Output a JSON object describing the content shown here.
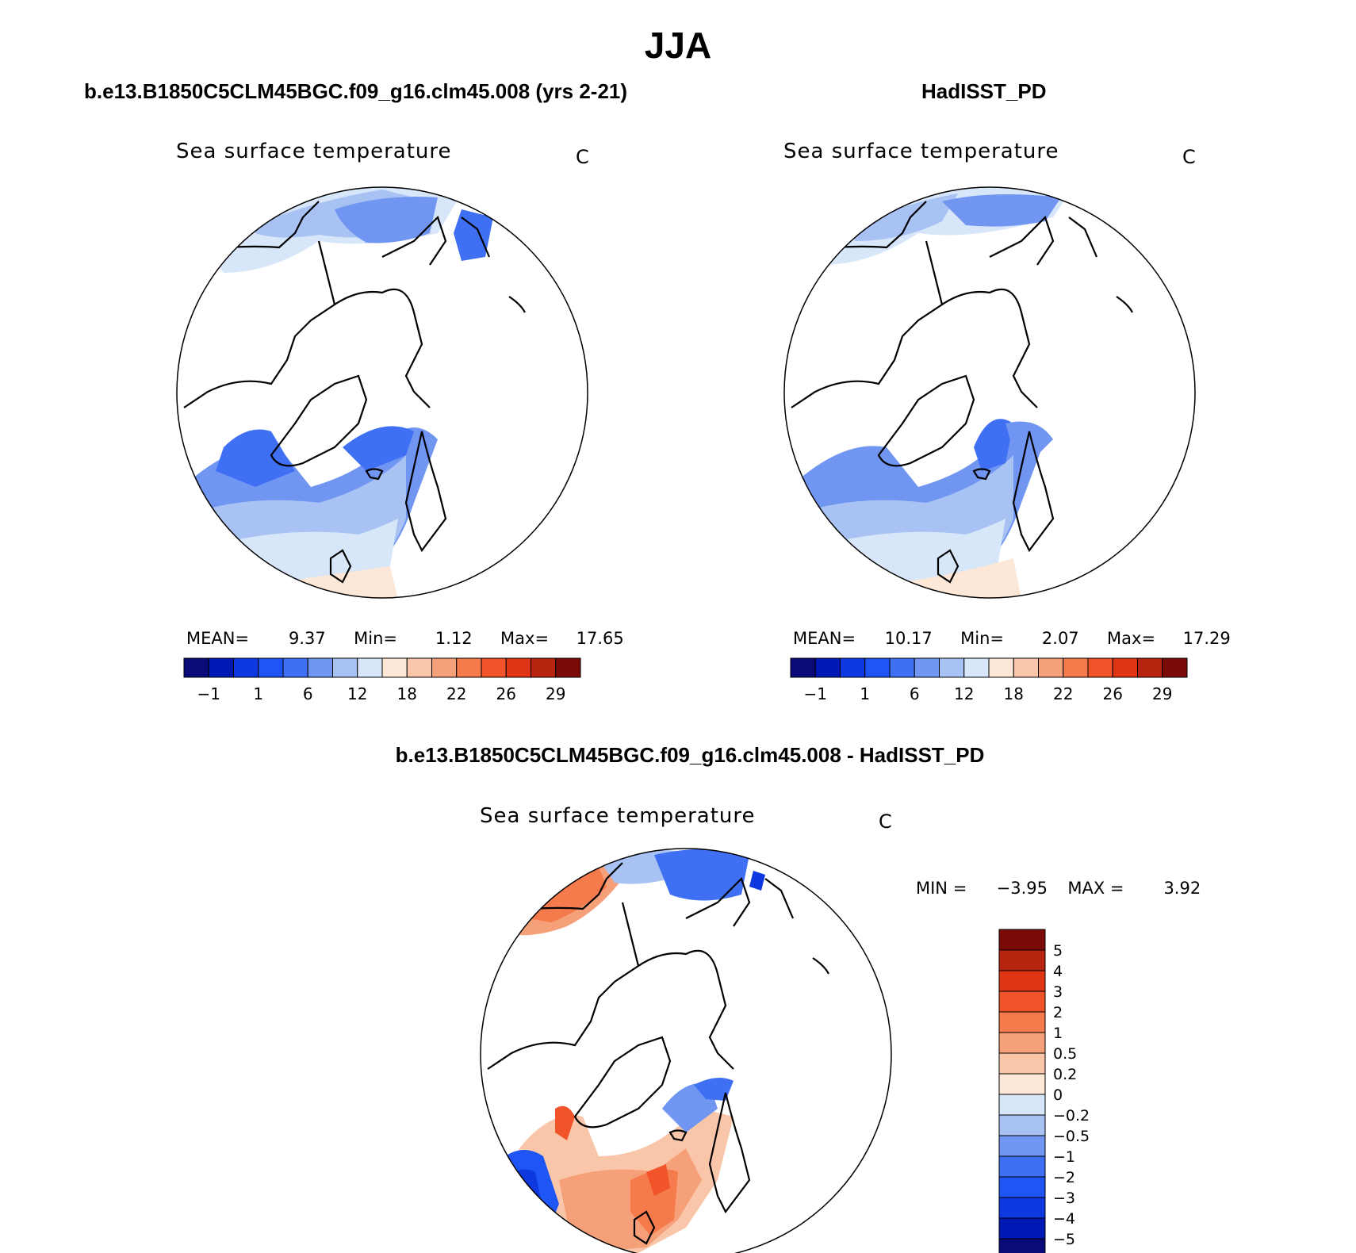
{
  "title": "JJA",
  "panels": [
    {
      "title": "b.e13.B1850C5CLM45BGC.f09_g16.clm45.008 (yrs 2-21)",
      "variable": "Sea surface temperature",
      "units": "C",
      "stats": {
        "mean_label": "MEAN=",
        "mean": "9.37",
        "min_label": "Min=",
        "min": "1.12",
        "max_label": "Max=",
        "max": "17.65"
      }
    },
    {
      "title": "HadISST_PD",
      "variable": "Sea surface temperature",
      "units": "C",
      "stats": {
        "mean_label": "MEAN=",
        "mean": "10.17",
        "min_label": "Min=",
        "min": "2.07",
        "max_label": "Max=",
        "max": "17.29"
      }
    },
    {
      "title": "b.e13.B1850C5CLM45BGC.f09_g16.clm45.008 - HadISST_PD",
      "variable": "Sea surface temperature",
      "units": "C",
      "stats": {
        "min_label": "MIN =",
        "min": "-3.95",
        "max_label": "MAX =",
        "max": "3.92"
      }
    }
  ],
  "colorbar_abs": {
    "colors": [
      "#0a0a78",
      "#0018b4",
      "#0e38e0",
      "#1f55f5",
      "#3f70f4",
      "#7196f2",
      "#a8c2f4",
      "#d7e6f8",
      "#fde8d8",
      "#f9c6a9",
      "#f6a07a",
      "#f57a4c",
      "#f2542a",
      "#e03514",
      "#b72410",
      "#7c0b08"
    ],
    "tick_labels": [
      "-1",
      "1",
      "6",
      "12",
      "18",
      "22",
      "26",
      "29"
    ]
  },
  "colorbar_diff": {
    "colors": [
      "#0a0a78",
      "#0018b4",
      "#0e38e0",
      "#1f55f5",
      "#3f70f4",
      "#7196f2",
      "#a8c2f4",
      "#d7e6f8",
      "#fde8d8",
      "#f9c6a9",
      "#f6a07a",
      "#f57a4c",
      "#f2542a",
      "#e03514",
      "#b72410",
      "#7c0b08"
    ],
    "tick_labels": [
      "5",
      "4",
      "3",
      "2",
      "1",
      "0.5",
      "0.2",
      "0",
      "-0.2",
      "-0.5",
      "-1",
      "-2",
      "-3",
      "-4",
      "-5"
    ]
  }
}
